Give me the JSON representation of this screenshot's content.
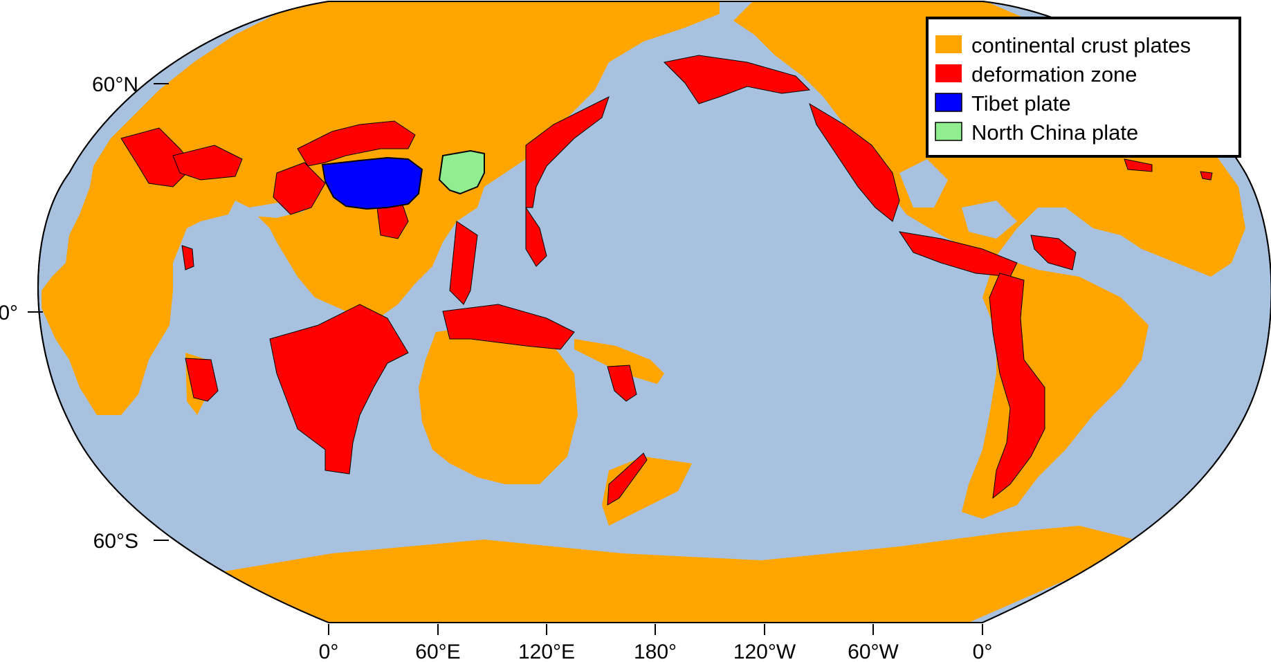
{
  "colors": {
    "ocean": "#a7c1df",
    "continental": "#ffa500",
    "deformation": "#ff0000",
    "tibet": "#0000ff",
    "north_china": "#90ee90",
    "frame": "#000000"
  },
  "legend": {
    "items": [
      {
        "label": "continental crust plates",
        "color": "#ffa500"
      },
      {
        "label": "deformation zone",
        "color": "#ff0000"
      },
      {
        "label": "Tibet plate",
        "color": "#0000ff"
      },
      {
        "label": "North China plate",
        "color": "#90ee90"
      }
    ]
  },
  "axes": {
    "latitude_ticks": [
      "60°N",
      "0°",
      "60°S"
    ],
    "longitude_ticks": [
      "0°",
      "60°E",
      "120°E",
      "180°",
      "120°W",
      "60°W",
      "0°"
    ]
  }
}
